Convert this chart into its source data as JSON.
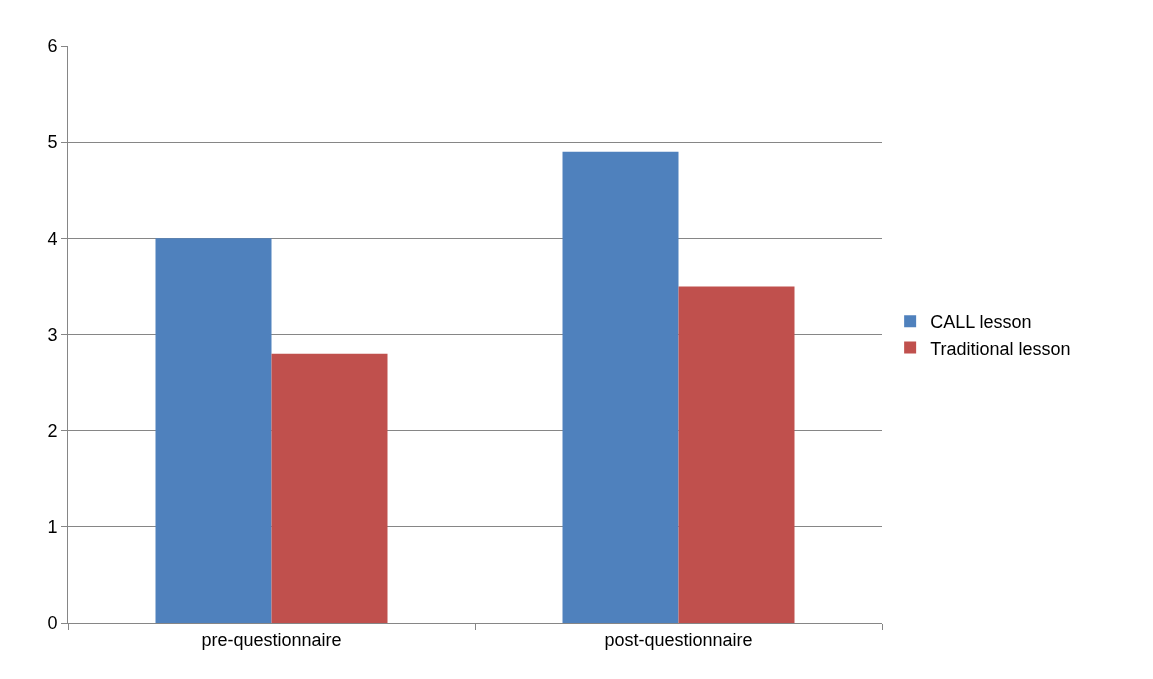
{
  "chart_data": {
    "type": "bar",
    "categories": [
      "pre-questionnaire",
      "post-questionnaire"
    ],
    "series": [
      {
        "name": "CALL lesson",
        "color": "#4f81bd",
        "values": [
          4.0,
          4.9
        ]
      },
      {
        "name": "Traditional lesson",
        "color": "#c0504d",
        "values": [
          2.8,
          3.5
        ]
      }
    ],
    "ylim": [
      0,
      6
    ],
    "yticks": [
      0,
      1,
      2,
      3,
      4,
      5,
      6
    ],
    "grid": "y",
    "legend": "right"
  }
}
